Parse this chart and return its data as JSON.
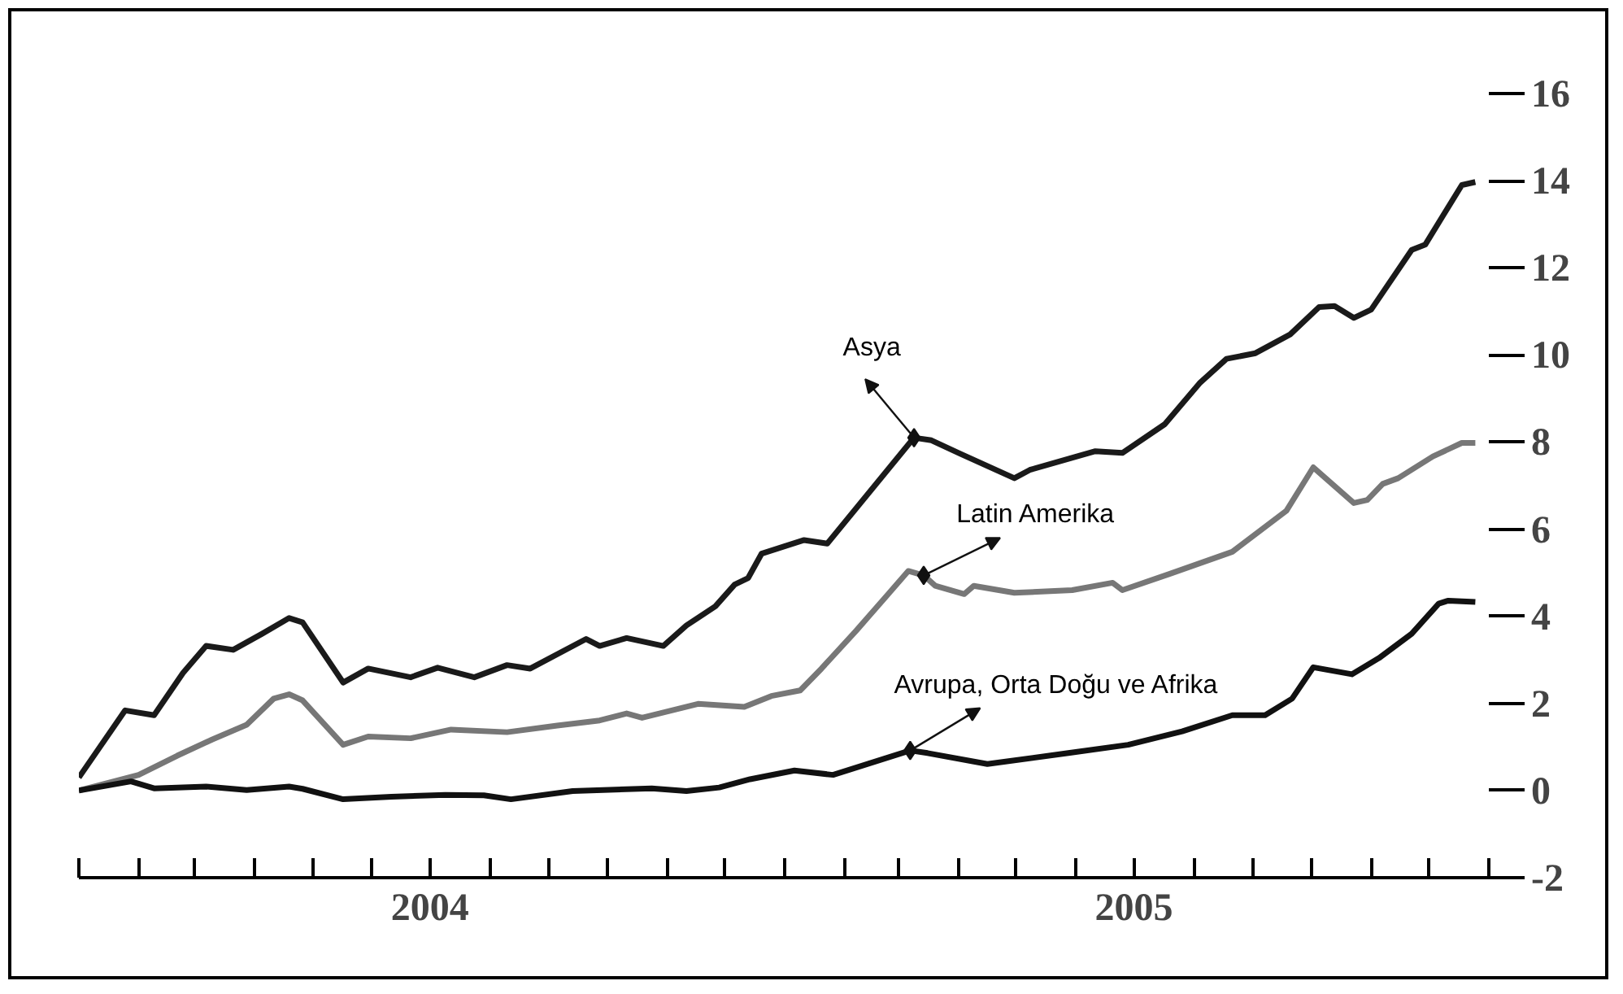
{
  "chart_data": {
    "type": "line",
    "xlim": [
      "2004-01-01",
      "2006-01-01"
    ],
    "ylim": [
      -2,
      16
    ],
    "xticks": [
      {
        "value": "2004-01-01",
        "label": null
      },
      {
        "value": "2004-02-01",
        "label": null
      },
      {
        "value": "2004-03-01",
        "label": null
      },
      {
        "value": "2004-04-01",
        "label": null
      },
      {
        "value": "2004-05-01",
        "label": null
      },
      {
        "value": "2004-06-01",
        "label": null
      },
      {
        "value": "2004-07-01",
        "label": "2004"
      },
      {
        "value": "2004-08-01",
        "label": null
      },
      {
        "value": "2004-09-01",
        "label": null
      },
      {
        "value": "2004-10-01",
        "label": null
      },
      {
        "value": "2004-11-01",
        "label": null
      },
      {
        "value": "2004-12-01",
        "label": null
      },
      {
        "value": "2005-01-01",
        "label": null
      },
      {
        "value": "2005-02-01",
        "label": null
      },
      {
        "value": "2005-03-01",
        "label": null
      },
      {
        "value": "2005-04-01",
        "label": null
      },
      {
        "value": "2005-05-01",
        "label": null
      },
      {
        "value": "2005-06-01",
        "label": null
      },
      {
        "value": "2005-07-01",
        "label": "2005"
      },
      {
        "value": "2005-08-01",
        "label": null
      },
      {
        "value": "2005-09-01",
        "label": null
      },
      {
        "value": "2005-10-01",
        "label": null
      },
      {
        "value": "2005-11-01",
        "label": null
      },
      {
        "value": "2005-12-01",
        "label": null
      },
      {
        "value": "2006-01-01",
        "label": null
      }
    ],
    "yticks": [
      -2,
      0,
      2,
      4,
      6,
      8,
      10,
      12,
      14,
      16
    ],
    "grid": false,
    "marker": "none",
    "line_style": "solid",
    "series": [
      {
        "color": "#1a1a1a",
        "x": [
          "2004-01-01",
          "2004-01-25",
          "2004-02-09",
          "2004-02-24",
          "2004-03-07",
          "2004-03-21",
          "2004-04-05",
          "2004-04-19",
          "2004-04-26",
          "2004-05-17",
          "2004-05-30",
          "2004-06-21",
          "2004-07-05",
          "2004-07-24",
          "2004-08-10",
          "2004-08-22",
          "2004-09-20",
          "2004-09-27",
          "2004-10-11",
          "2004-10-30",
          "2004-11-11",
          "2004-11-26",
          "2004-12-06",
          "2004-12-13",
          "2004-12-20",
          "2005-01-11",
          "2005-01-23",
          "2005-03-09",
          "2005-03-18",
          "2005-04-02",
          "2005-04-30",
          "2005-05-08",
          "2005-06-11",
          "2005-06-25",
          "2005-07-17",
          "2005-08-04",
          "2005-08-18",
          "2005-09-02",
          "2005-09-20",
          "2005-10-05",
          "2005-10-13",
          "2005-10-23",
          "2005-11-01",
          "2005-11-22",
          "2005-11-29",
          "2005-12-18",
          "2005-12-25"
        ],
        "values": [
          0.3,
          1.84,
          1.73,
          2.7,
          3.32,
          3.23,
          3.6,
          3.96,
          3.86,
          2.48,
          2.8,
          2.6,
          2.82,
          2.6,
          2.88,
          2.8,
          3.48,
          3.32,
          3.5,
          3.32,
          3.79,
          4.23,
          4.73,
          4.88,
          5.44,
          5.75,
          5.67,
          8.1,
          8.04,
          7.73,
          7.17,
          7.36,
          7.79,
          7.75,
          8.41,
          9.35,
          9.91,
          10.04,
          10.47,
          11.1,
          11.12,
          10.85,
          11.04,
          12.41,
          12.53,
          13.9,
          13.97
        ]
      },
      {
        "color": "#777777",
        "x": [
          "2004-01-01",
          "2004-02-01",
          "2004-02-21",
          "2004-03-10",
          "2004-03-28",
          "2004-04-11",
          "2004-04-19",
          "2004-04-26",
          "2004-05-17",
          "2004-05-30",
          "2004-06-21",
          "2004-07-12",
          "2004-08-10",
          "2004-09-05",
          "2004-09-27",
          "2004-10-11",
          "2004-10-19",
          "2004-11-17",
          "2004-12-11",
          "2004-12-25",
          "2005-01-09",
          "2005-01-20",
          "2005-02-07",
          "2005-02-23",
          "2005-03-06",
          "2005-03-14",
          "2005-03-20",
          "2005-04-04",
          "2005-04-09",
          "2005-04-30",
          "2005-05-30",
          "2005-06-20",
          "2005-06-25",
          "2005-07-20",
          "2005-08-21",
          "2005-09-18",
          "2005-10-02",
          "2005-10-23",
          "2005-10-30",
          "2005-11-07",
          "2005-11-15",
          "2005-12-03",
          "2005-12-18",
          "2005-12-25"
        ],
        "values": [
          0,
          0.36,
          0.8,
          1.17,
          1.51,
          2.11,
          2.21,
          2.07,
          1.05,
          1.24,
          1.2,
          1.4,
          1.34,
          1.49,
          1.61,
          1.77,
          1.67,
          1.99,
          1.92,
          2.17,
          2.3,
          2.8,
          3.67,
          4.48,
          5.04,
          4.94,
          4.7,
          4.51,
          4.7,
          4.54,
          4.6,
          4.77,
          4.6,
          4.98,
          5.48,
          6.42,
          7.42,
          6.6,
          6.67,
          7.04,
          7.17,
          7.67,
          7.98,
          7.98
        ]
      },
      {
        "color": "#111111",
        "x": [
          "2004-01-01",
          "2004-01-28",
          "2004-02-09",
          "2004-03-07",
          "2004-03-28",
          "2004-04-19",
          "2004-04-26",
          "2004-05-17",
          "2004-06-11",
          "2004-07-09",
          "2004-07-29",
          "2004-08-12",
          "2004-09-13",
          "2004-10-24",
          "2004-11-11",
          "2004-11-28",
          "2004-12-14",
          "2005-01-06",
          "2005-01-26",
          "2005-03-07",
          "2005-03-16",
          "2005-04-16",
          "2005-05-28",
          "2005-06-28",
          "2005-07-26",
          "2005-08-21",
          "2005-09-07",
          "2005-09-21",
          "2005-10-02",
          "2005-10-22",
          "2005-11-05",
          "2005-11-22",
          "2005-12-06",
          "2005-12-11",
          "2005-12-25"
        ],
        "values": [
          0,
          0.21,
          0.05,
          0.09,
          0.01,
          0.09,
          0.04,
          -0.2,
          -0.14,
          -0.1,
          -0.11,
          -0.2,
          -0.01,
          0.05,
          -0.01,
          0.07,
          0.26,
          0.46,
          0.36,
          0.92,
          0.86,
          0.61,
          0.86,
          1.05,
          1.36,
          1.73,
          1.73,
          2.11,
          2.83,
          2.67,
          3.04,
          3.6,
          4.29,
          4.36,
          4.33
        ]
      }
    ],
    "annotations": [
      {
        "text": "Asya",
        "x": "2005-03-09",
        "y": 8.1
      },
      {
        "text": "Latin Amerika",
        "x": "2005-03-14",
        "y": 4.94
      },
      {
        "text": "Avrupa, Orta Doğu ve Afrika",
        "x": "2005-03-07",
        "y": 0.92
      }
    ]
  }
}
